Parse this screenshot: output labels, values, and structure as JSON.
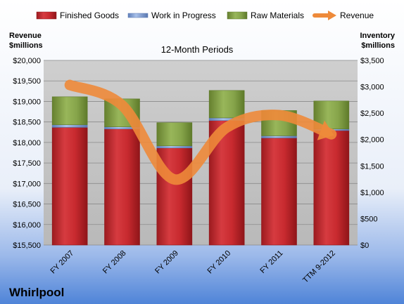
{
  "chart_data": {
    "type": "bar",
    "subtitle": "12-Month Periods",
    "brand": "Whirlpool",
    "ylabel_left": [
      "Revenue",
      "$millions"
    ],
    "ylabel_right": [
      "Inventory",
      "$millions"
    ],
    "categories": [
      "FY 2007",
      "FY 2008",
      "FY 2009",
      "FY 2010",
      "FY 2011",
      "TTM 9-2012"
    ],
    "left_axis": {
      "ylim": [
        15500,
        20000
      ],
      "ticks": [
        "$15,500",
        "$16,000",
        "$16,500",
        "$17,000",
        "$17,500",
        "$18,000",
        "$18,500",
        "$19,000",
        "$19,500",
        "$20,000"
      ]
    },
    "right_axis": {
      "ylim": [
        0,
        3500
      ],
      "ticks": [
        "$0",
        "$500",
        "$1,000",
        "$1,500",
        "$2,000",
        "$2,500",
        "$3,000",
        "$3,500"
      ]
    },
    "legend_placement": "top",
    "grid": true,
    "series": [
      {
        "name": "Finished Goods",
        "axis": "right",
        "values": [
          2230,
          2200,
          1840,
          2360,
          2030,
          2170
        ]
      },
      {
        "name": "Work in Progress",
        "axis": "right",
        "values": [
          50,
          40,
          40,
          50,
          40,
          30
        ]
      },
      {
        "name": "Raw Materials",
        "axis": "right",
        "values": [
          530,
          530,
          440,
          520,
          480,
          530
        ]
      },
      {
        "name": "Revenue",
        "axis": "left",
        "type": "line",
        "values": [
          19400,
          18907,
          17099,
          18366,
          18666,
          18200
        ]
      }
    ],
    "colors": {
      "finished_goods": "#c0272d",
      "work_in_progress": "#7f9fd6",
      "raw_materials": "#8aa84a",
      "revenue": "#ee8a3a"
    }
  }
}
